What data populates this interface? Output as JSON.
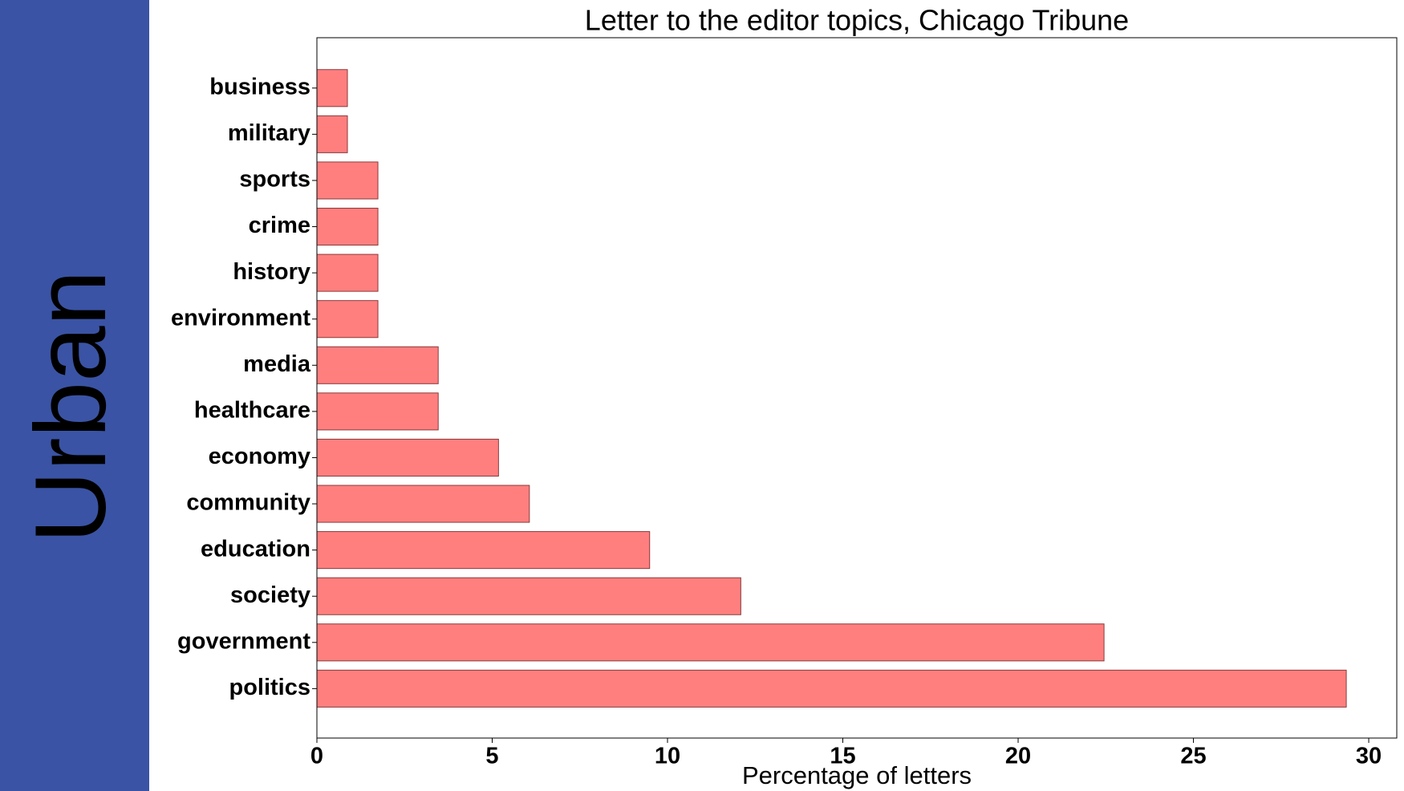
{
  "chart_data": {
    "type": "barh",
    "side_label": "Urban",
    "title": "Letter to the editor topics, Chicago Tribune",
    "x_label": "Percentage of letters",
    "categories": [
      "politics",
      "government",
      "society",
      "education",
      "community",
      "economy",
      "healthcare",
      "media",
      "environment",
      "history",
      "crime",
      "sports",
      "military",
      "business"
    ],
    "values": [
      29.36,
      22.45,
      12.09,
      9.49,
      6.06,
      5.18,
      3.46,
      3.46,
      1.74,
      1.74,
      1.74,
      1.74,
      0.87,
      0.87
    ],
    "color": "#ff7f7f",
    "xlim": [
      0,
      30.8
    ],
    "xticks": [
      0,
      5,
      10,
      15,
      20,
      25,
      30
    ],
    "grid": false
  }
}
